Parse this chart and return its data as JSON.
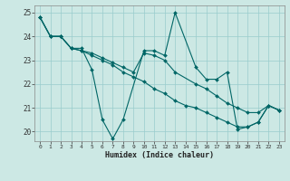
{
  "xlabel": "Humidex (Indice chaleur)",
  "background_color": "#cce8e4",
  "grid_color": "#99cccc",
  "line_color": "#006666",
  "ylim": [
    19.6,
    25.3
  ],
  "xlim": [
    -0.5,
    23.5
  ],
  "yticks": [
    20,
    21,
    22,
    23,
    24,
    25
  ],
  "xticks": [
    0,
    1,
    2,
    3,
    4,
    5,
    6,
    7,
    8,
    9,
    10,
    11,
    12,
    13,
    14,
    15,
    16,
    17,
    18,
    19,
    20,
    21,
    22,
    23
  ],
  "s1_x": [
    0,
    1,
    2,
    3,
    4,
    5,
    6,
    7,
    8,
    10,
    11,
    12,
    13,
    15,
    16,
    17,
    18,
    19,
    20,
    21,
    22,
    23
  ],
  "s1_y": [
    24.8,
    24.0,
    24.0,
    23.5,
    23.5,
    22.6,
    20.5,
    19.7,
    20.5,
    23.4,
    23.4,
    23.2,
    25.0,
    22.7,
    22.2,
    22.2,
    22.5,
    20.1,
    20.2,
    20.4,
    21.1,
    20.9
  ],
  "s2_x": [
    0,
    1,
    2,
    3,
    4,
    5,
    6,
    7,
    8,
    9,
    10,
    11,
    12,
    13,
    15,
    16,
    17,
    18,
    19,
    20,
    21,
    22,
    23
  ],
  "s2_y": [
    24.8,
    24.0,
    24.0,
    23.5,
    23.4,
    23.3,
    23.1,
    22.9,
    22.7,
    22.5,
    23.3,
    23.2,
    23.0,
    22.5,
    22.0,
    21.8,
    21.5,
    21.2,
    21.0,
    20.8,
    20.8,
    21.1,
    20.9
  ],
  "s3_x": [
    0,
    1,
    2,
    3,
    4,
    5,
    6,
    7,
    8,
    9,
    10,
    11,
    12,
    13,
    14,
    15,
    16,
    17,
    18,
    19,
    20,
    21,
    22,
    23
  ],
  "s3_y": [
    24.8,
    24.0,
    24.0,
    23.5,
    23.4,
    23.2,
    23.0,
    22.8,
    22.5,
    22.3,
    22.1,
    21.8,
    21.6,
    21.3,
    21.1,
    21.0,
    20.8,
    20.6,
    20.4,
    20.2,
    20.2,
    20.4,
    21.1,
    20.9
  ]
}
